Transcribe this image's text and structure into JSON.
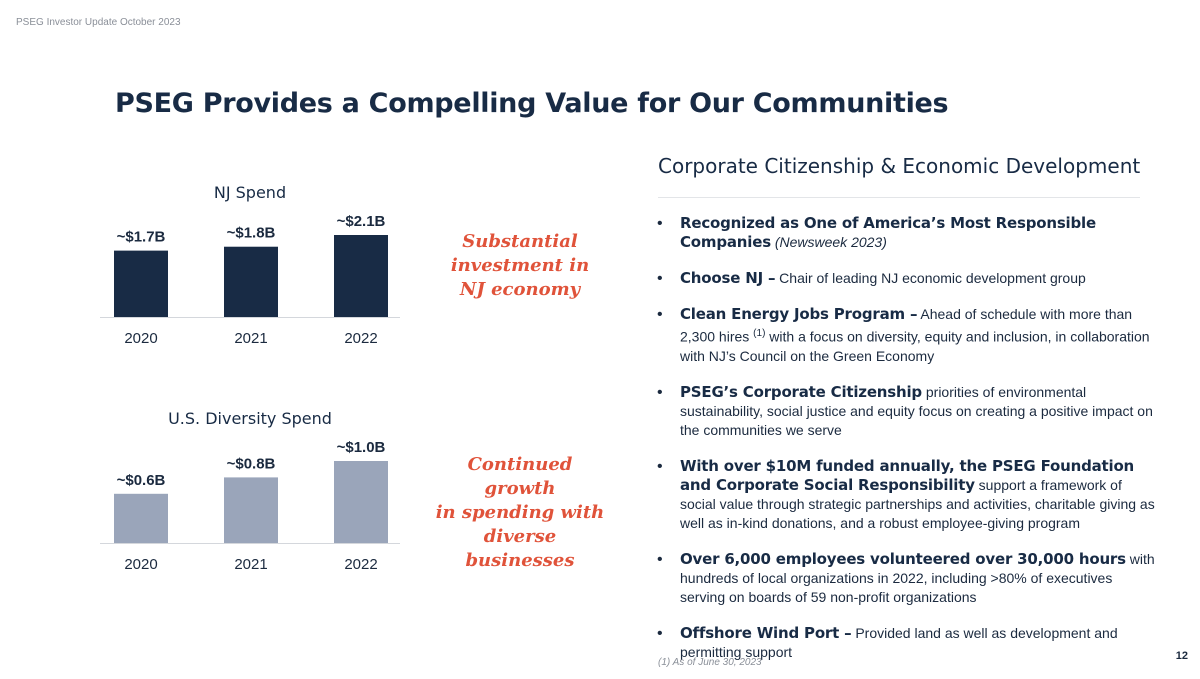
{
  "header_note": "PSEG Investor Update October 2023",
  "title": "PSEG Provides a Compelling Value for Our Communities",
  "colors": {
    "navy": "#182b45",
    "slate": "#9aa5ba",
    "accent": "#e0533a"
  },
  "chart_data": [
    {
      "type": "bar",
      "title": "NJ Spend",
      "categories": [
        "2020",
        "2021",
        "2022"
      ],
      "values": [
        1.7,
        1.8,
        2.1
      ],
      "value_labels": [
        "~$1.7B",
        "~$1.8B",
        "~$2.1B"
      ],
      "ylim": [
        0,
        2.1
      ],
      "xlabel": "",
      "ylabel": "",
      "grid": false,
      "color": "#182b45"
    },
    {
      "type": "bar",
      "title": "U.S. Diversity Spend",
      "categories": [
        "2020",
        "2021",
        "2022"
      ],
      "values": [
        0.6,
        0.8,
        1.0
      ],
      "value_labels": [
        "~$0.6B",
        "~$0.8B",
        "~$1.0B"
      ],
      "ylim": [
        0,
        1.0
      ],
      "xlabel": "",
      "ylabel": "",
      "grid": false,
      "color": "#9aa5ba"
    }
  ],
  "callouts": [
    [
      "Substantial",
      "investment in",
      "NJ economy"
    ],
    [
      "Continued growth",
      "in spending with",
      "diverse businesses"
    ]
  ],
  "right": {
    "heading": "Corporate Citizenship & Economic Development",
    "bullets": [
      {
        "head": "Recognized as One of America’s Most Responsible Companies",
        "italic": "(Newsweek 2023)",
        "text": ""
      },
      {
        "head": "Choose NJ –",
        "text": "Chair of leading NJ economic development group"
      },
      {
        "head": "Clean Energy Jobs Program –",
        "text": "Ahead of schedule with more than 2,300 hires",
        "sup": "(1)",
        "text2": "with a focus on diversity, equity and inclusion, in collaboration with NJ’s Council on the Green Economy"
      },
      {
        "head": "PSEG’s Corporate Citizenship",
        "text": "priorities of environmental sustainability, social justice and equity focus on creating a positive impact on the communities we serve"
      },
      {
        "head": "With over $10M funded annually, the PSEG Foundation and Corporate Social Responsibility",
        "text": "support a framework of social value through strategic partnerships and activities, charitable giving as well as in-kind donations, and a robust employee-giving program"
      },
      {
        "head": "Over 6,000 employees volunteered over 30,000 hours",
        "text": "with hundreds of local organizations in 2022, including >80% of executives serving on boards of 59 non-profit organizations"
      },
      {
        "head": "Offshore Wind Port –",
        "text": "Provided land as well as development and permitting support"
      }
    ]
  },
  "footnote": "(1) As of June 30, 2023",
  "page_number": "12"
}
